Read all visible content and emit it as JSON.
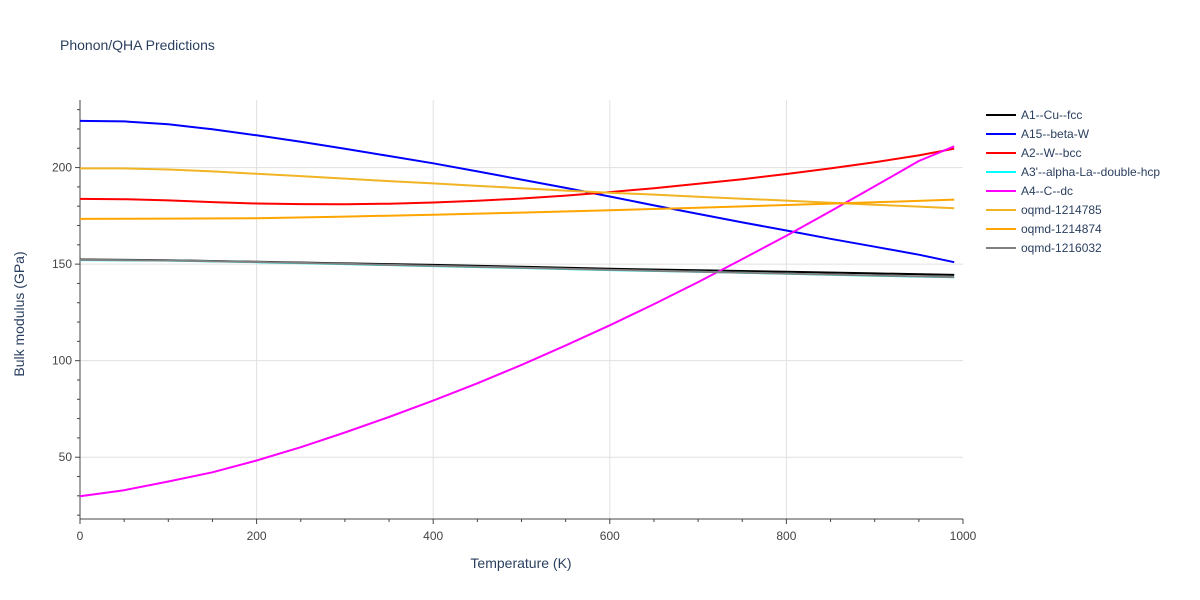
{
  "chart_data": {
    "type": "line",
    "title": "Phonon/QHA Predictions",
    "xlabel": "Temperature (K)",
    "ylabel": "Bulk modulus (GPa)",
    "xlim": [
      0,
      1000
    ],
    "ylim": [
      18,
      235
    ],
    "xticks": [
      0,
      200,
      400,
      600,
      800,
      1000
    ],
    "yticks": [
      50,
      100,
      150,
      200
    ],
    "grid": true,
    "legend_position": "right",
    "series": [
      {
        "name": "A1--Cu--fcc",
        "color": "#000000",
        "x": [
          0,
          100,
          200,
          300,
          400,
          500,
          600,
          700,
          800,
          900,
          990
        ],
        "y": [
          152.4,
          152.0,
          151.2,
          150.4,
          149.6,
          148.6,
          147.6,
          146.8,
          146.0,
          145.2,
          144.4
        ]
      },
      {
        "name": "A15--beta-W",
        "color": "#0000ff",
        "x": [
          0,
          50,
          100,
          150,
          200,
          250,
          300,
          350,
          400,
          450,
          500,
          550,
          600,
          650,
          700,
          750,
          800,
          850,
          900,
          950,
          990
        ],
        "y": [
          224.2,
          223.9,
          222.4,
          219.8,
          216.7,
          213.4,
          209.8,
          206.0,
          202.2,
          198.0,
          193.8,
          189.5,
          185.0,
          180.4,
          176.0,
          171.6,
          167.4,
          163.1,
          159.0,
          154.9,
          151.0
        ]
      },
      {
        "name": "A2--W--bcc",
        "color": "#ff0000",
        "x": [
          0,
          50,
          100,
          150,
          200,
          250,
          300,
          350,
          400,
          450,
          500,
          550,
          600,
          650,
          700,
          750,
          800,
          850,
          900,
          950,
          990
        ],
        "y": [
          183.8,
          183.6,
          183.0,
          182.1,
          181.4,
          181.1,
          181.0,
          181.3,
          181.9,
          182.8,
          184.0,
          185.5,
          187.3,
          189.3,
          191.6,
          194.0,
          196.7,
          199.6,
          202.8,
          206.3,
          209.8
        ]
      },
      {
        "name": "A3'--alpha-La--double-hcp",
        "color": "#00ffff",
        "x": [
          0,
          100,
          200,
          300,
          400,
          500,
          600,
          700,
          800,
          900,
          990
        ],
        "y": [
          152.1,
          151.8,
          151.0,
          150.0,
          149.0,
          148.0,
          146.9,
          146.0,
          145.0,
          144.0,
          143.2
        ]
      },
      {
        "name": "A4--C--dc",
        "color": "#ff00ff",
        "x": [
          0,
          50,
          100,
          150,
          200,
          250,
          300,
          350,
          400,
          450,
          500,
          550,
          600,
          650,
          700,
          750,
          800,
          850,
          900,
          950,
          990
        ],
        "y": [
          29.8,
          32.9,
          37.4,
          42.2,
          48.3,
          55.2,
          62.8,
          70.8,
          79.3,
          88.3,
          97.8,
          107.9,
          118.3,
          129.3,
          140.7,
          152.6,
          164.7,
          177.4,
          190.3,
          203.4,
          211.0
        ]
      },
      {
        "name": "oqmd-1214785",
        "color": "#f0b424",
        "x": [
          0,
          50,
          100,
          150,
          200,
          250,
          300,
          350,
          400,
          450,
          500,
          550,
          600,
          650,
          700,
          750,
          800,
          850,
          900,
          950,
          990
        ],
        "y": [
          199.6,
          199.6,
          199.0,
          198.0,
          196.8,
          195.6,
          194.3,
          193.0,
          191.8,
          190.5,
          189.3,
          188.1,
          187.0,
          186.0,
          184.9,
          183.9,
          182.9,
          181.8,
          180.8,
          179.8,
          178.9
        ]
      },
      {
        "name": "oqmd-1214874",
        "color": "#ffa500",
        "x": [
          0,
          100,
          200,
          300,
          400,
          500,
          600,
          700,
          800,
          900,
          990
        ],
        "y": [
          173.4,
          173.6,
          173.8,
          174.6,
          175.6,
          176.7,
          177.9,
          179.2,
          180.6,
          182.0,
          183.4
        ]
      },
      {
        "name": "oqmd-1216032",
        "color": "#808080",
        "x": [
          0,
          100,
          200,
          300,
          400,
          500,
          600,
          700,
          800,
          900,
          990
        ],
        "y": [
          152.2,
          151.9,
          151.1,
          150.1,
          149.1,
          148.1,
          147.0,
          146.1,
          145.1,
          144.1,
          143.3
        ]
      }
    ]
  }
}
